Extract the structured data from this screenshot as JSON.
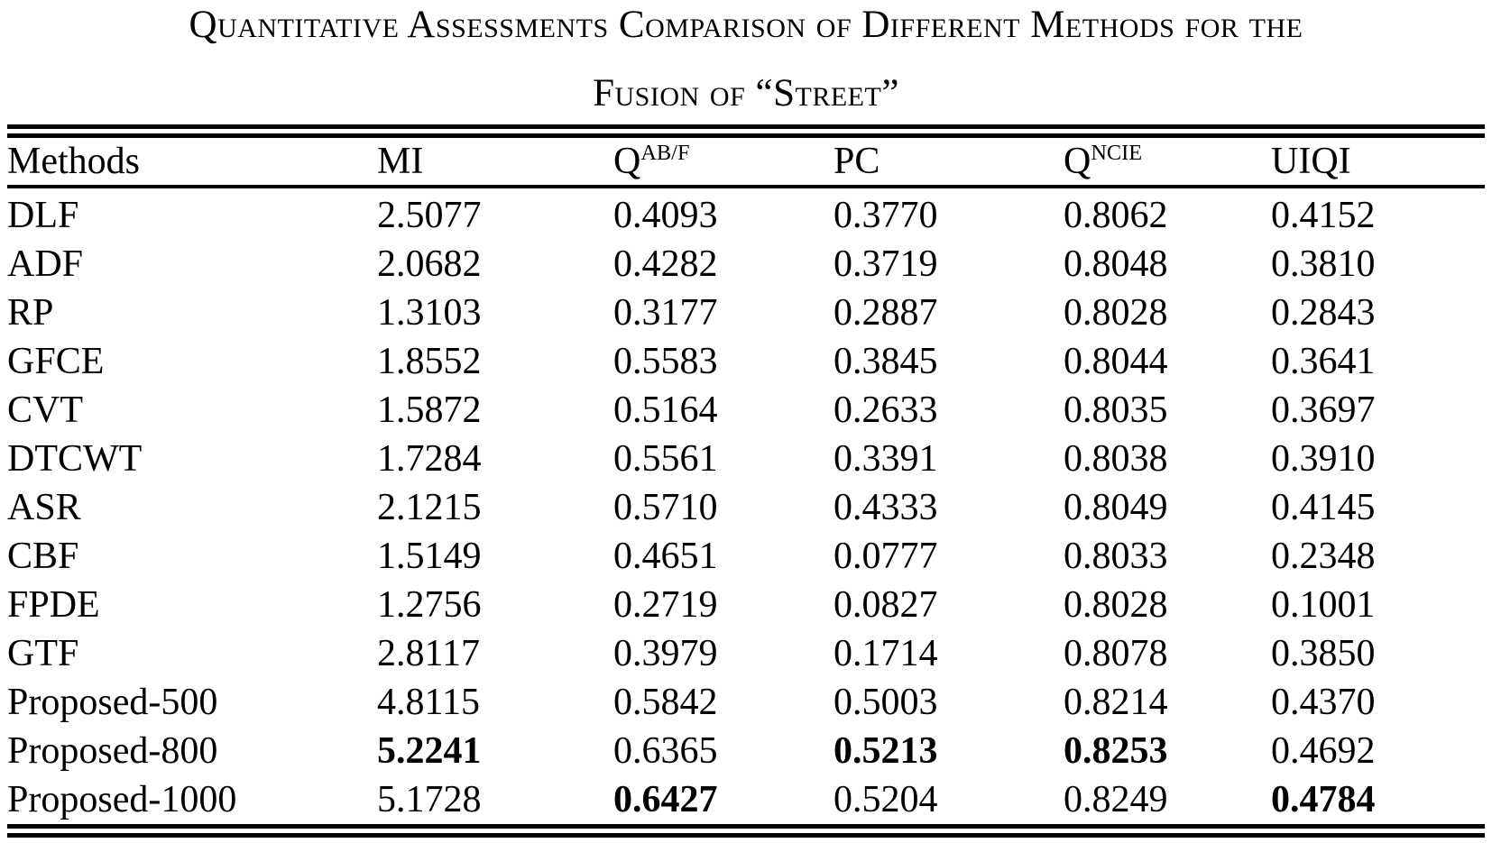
{
  "caption": {
    "line1": "Quantitative Assessments Comparison of Different Methods for the",
    "line2": "Fusion of “Street”"
  },
  "table": {
    "columns": [
      {
        "label": "Methods",
        "sup": ""
      },
      {
        "label": "MI",
        "sup": ""
      },
      {
        "label": "Q",
        "sup": "AB/F"
      },
      {
        "label": "PC",
        "sup": ""
      },
      {
        "label": "Q",
        "sup": "NCIE"
      },
      {
        "label": "UIQI",
        "sup": ""
      }
    ],
    "rows": [
      {
        "method": "DLF",
        "values": [
          "2.5077",
          "0.4093",
          "0.3770",
          "0.8062",
          "0.4152"
        ],
        "bold": [
          false,
          false,
          false,
          false,
          false
        ]
      },
      {
        "method": "ADF",
        "values": [
          "2.0682",
          "0.4282",
          "0.3719",
          "0.8048",
          "0.3810"
        ],
        "bold": [
          false,
          false,
          false,
          false,
          false
        ]
      },
      {
        "method": "RP",
        "values": [
          "1.3103",
          "0.3177",
          "0.2887",
          "0.8028",
          "0.2843"
        ],
        "bold": [
          false,
          false,
          false,
          false,
          false
        ]
      },
      {
        "method": "GFCE",
        "values": [
          "1.8552",
          "0.5583",
          "0.3845",
          "0.8044",
          "0.3641"
        ],
        "bold": [
          false,
          false,
          false,
          false,
          false
        ]
      },
      {
        "method": "CVT",
        "values": [
          "1.5872",
          "0.5164",
          "0.2633",
          "0.8035",
          "0.3697"
        ],
        "bold": [
          false,
          false,
          false,
          false,
          false
        ]
      },
      {
        "method": "DTCWT",
        "values": [
          "1.7284",
          "0.5561",
          "0.3391",
          "0.8038",
          "0.3910"
        ],
        "bold": [
          false,
          false,
          false,
          false,
          false
        ]
      },
      {
        "method": "ASR",
        "values": [
          "2.1215",
          "0.5710",
          "0.4333",
          "0.8049",
          "0.4145"
        ],
        "bold": [
          false,
          false,
          false,
          false,
          false
        ]
      },
      {
        "method": "CBF",
        "values": [
          "1.5149",
          "0.4651",
          "0.0777",
          "0.8033",
          "0.2348"
        ],
        "bold": [
          false,
          false,
          false,
          false,
          false
        ]
      },
      {
        "method": "FPDE",
        "values": [
          "1.2756",
          "0.2719",
          "0.0827",
          "0.8028",
          "0.1001"
        ],
        "bold": [
          false,
          false,
          false,
          false,
          false
        ]
      },
      {
        "method": "GTF",
        "values": [
          "2.8117",
          "0.3979",
          "0.1714",
          "0.8078",
          "0.3850"
        ],
        "bold": [
          false,
          false,
          false,
          false,
          false
        ]
      },
      {
        "method": "Proposed-500",
        "values": [
          "4.8115",
          "0.5842",
          "0.5003",
          "0.8214",
          "0.4370"
        ],
        "bold": [
          false,
          false,
          false,
          false,
          false
        ]
      },
      {
        "method": "Proposed-800",
        "values": [
          "5.2241",
          "0.6365",
          "0.5213",
          "0.8253",
          "0.4692"
        ],
        "bold": [
          true,
          false,
          true,
          true,
          false
        ]
      },
      {
        "method": "Proposed-1000",
        "values": [
          "5.1728",
          "0.6427",
          "0.5204",
          "0.8249",
          "0.4784"
        ],
        "bold": [
          false,
          true,
          false,
          false,
          true
        ]
      }
    ]
  },
  "colors": {
    "text": "#000000",
    "background": "#ffffff",
    "rule": "#000000"
  }
}
